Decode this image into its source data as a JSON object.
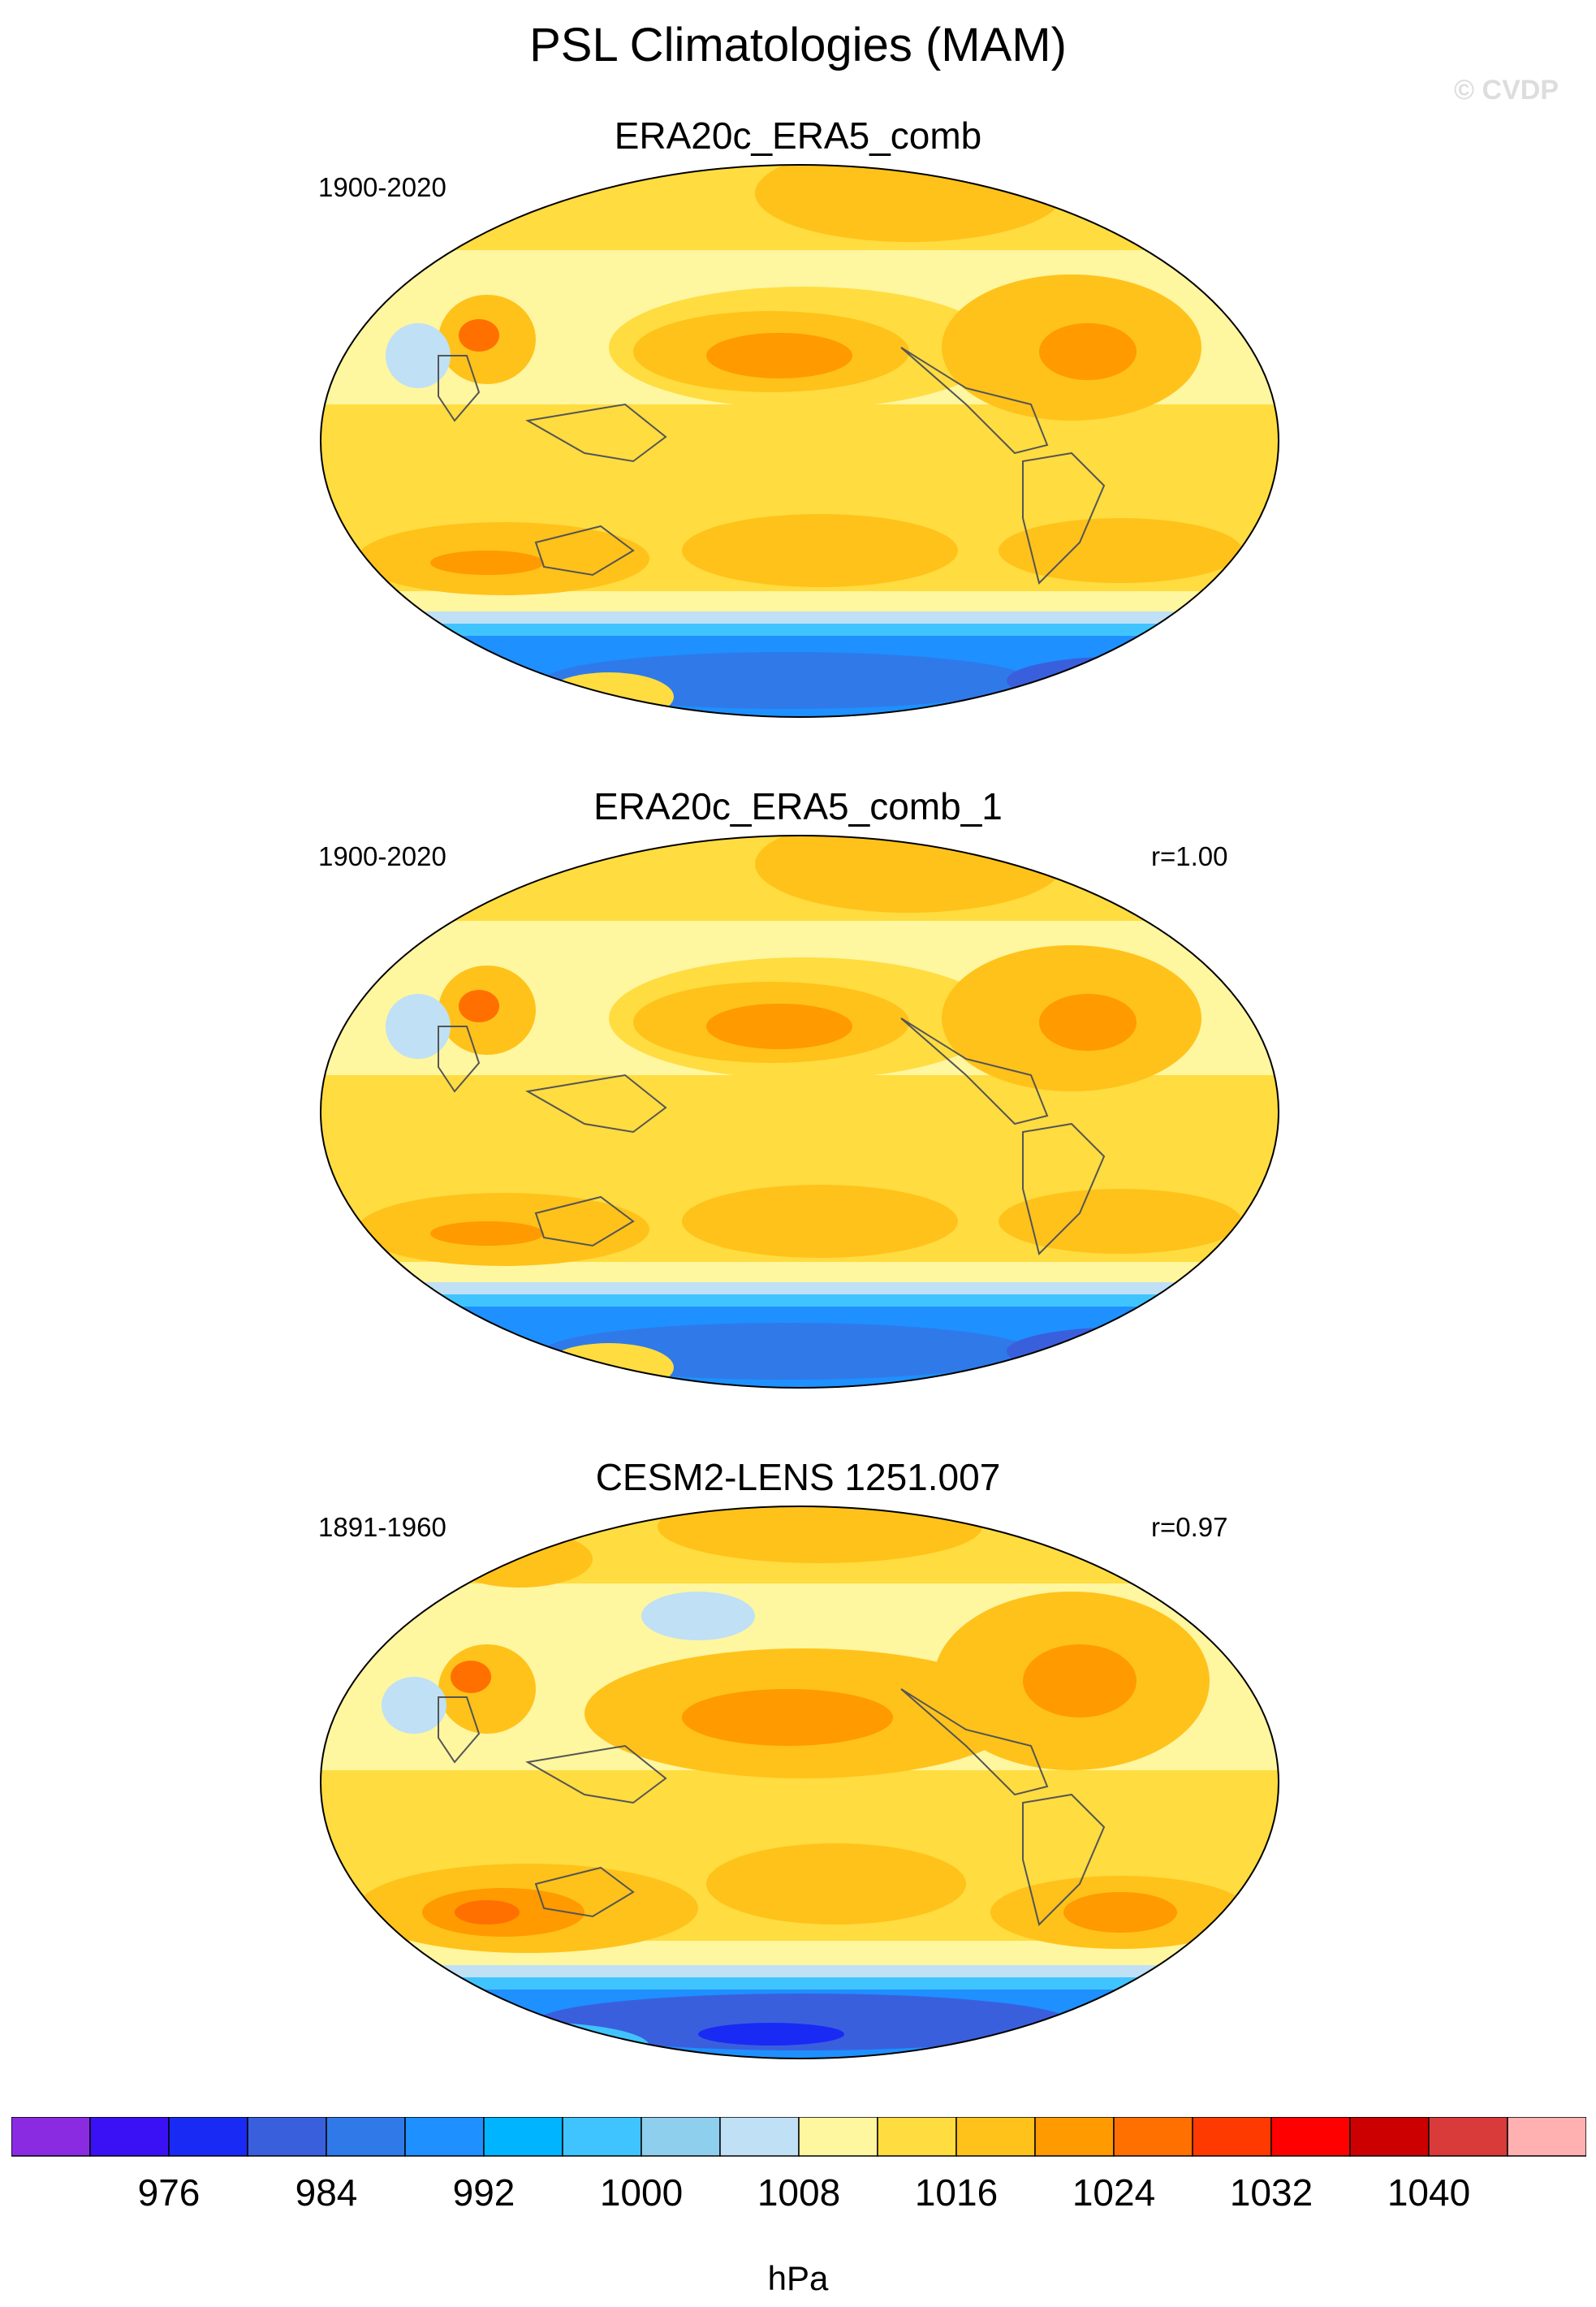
{
  "title": "PSL Climatologies (MAM)",
  "watermark": "© CVDP",
  "panels": [
    {
      "title": "ERA20c_ERA5_comb",
      "period": "1900-2020",
      "corr": ""
    },
    {
      "title": "ERA20c_ERA5_comb_1",
      "period": "1900-2020",
      "corr": "r=1.00"
    },
    {
      "title": "CESM2-LENS 1251.007",
      "period": "1891-1960",
      "corr": "r=0.97"
    }
  ],
  "colorbar": {
    "colors": [
      "#8a2be2",
      "#3a10f5",
      "#1a2af5",
      "#3a5fdd",
      "#2f7ae8",
      "#1e90ff",
      "#00b4ff",
      "#40c4ff",
      "#8fcfee",
      "#bfe0f5",
      "#fff6a0",
      "#ffdc40",
      "#ffc21a",
      "#ff9a00",
      "#ff7000",
      "#ff3a00",
      "#ff0000",
      "#cc0000",
      "#d93a3a",
      "#ffb0b0"
    ],
    "tick_labels": [
      "976",
      "984",
      "992",
      "1000",
      "1008",
      "1016",
      "1024",
      "1032",
      "1040"
    ],
    "units": "hPa"
  }
}
